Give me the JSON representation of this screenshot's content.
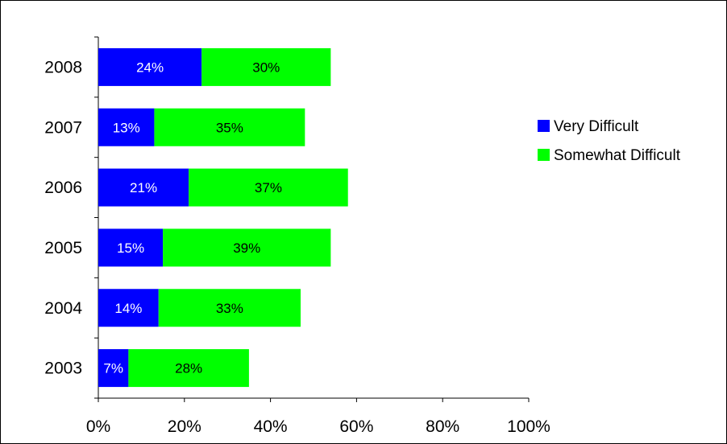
{
  "chart_data": {
    "type": "bar",
    "orientation": "horizontal",
    "stacked": true,
    "title": "",
    "xlabel": "",
    "ylabel": "",
    "categories": [
      "2003",
      "2004",
      "2005",
      "2006",
      "2007",
      "2008"
    ],
    "series": [
      {
        "name": "Very Difficult",
        "values": [
          7,
          14,
          15,
          21,
          13,
          24
        ],
        "labels": [
          "7%",
          "14%",
          "15%",
          "21%",
          "13%",
          "24%"
        ],
        "color": "#0000ff",
        "label_color": "#ffffff"
      },
      {
        "name": "Somewhat Difficult",
        "values": [
          28,
          33,
          39,
          37,
          35,
          30
        ],
        "labels": [
          "28%",
          "33%",
          "39%",
          "37%",
          "35%",
          "30%"
        ],
        "color": "#00ff00",
        "label_color": "#000000"
      }
    ],
    "xlim": [
      0,
      100
    ],
    "x_ticks": [
      "0%",
      "20%",
      "40%",
      "60%",
      "80%",
      "100%"
    ],
    "grid": false,
    "legend_position": "right"
  }
}
